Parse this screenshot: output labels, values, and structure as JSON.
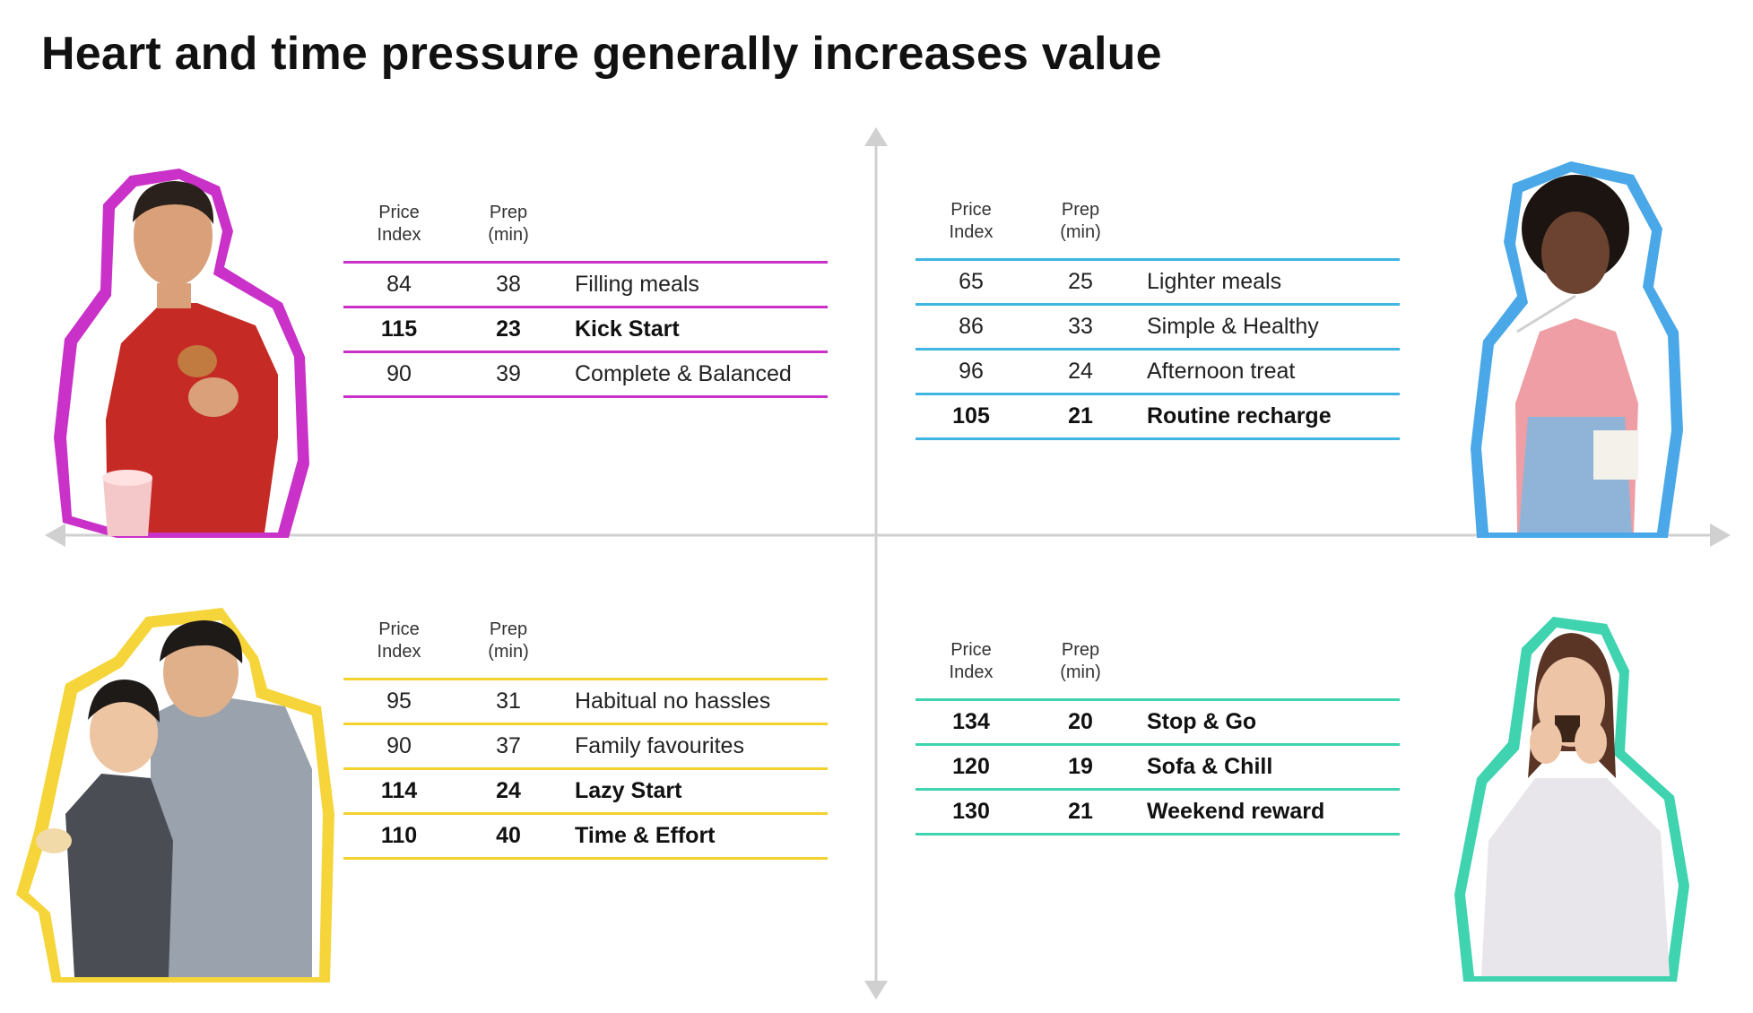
{
  "title": "Heart and time pressure generally increases value",
  "colors": {
    "axis": "#d0d0d0",
    "top_left": "#c931c8",
    "top_right": "#3fb6e2",
    "bottom_left": "#f4d22e",
    "bottom_right": "#3fd3b0"
  },
  "quadrants": {
    "top_left": {
      "header": {
        "col1_line1": "Price",
        "col1_line2": "Index",
        "col2_line1": "Prep",
        "col2_line2": "(min)"
      },
      "rows": [
        {
          "price": "84",
          "prep": "38",
          "label": "Filling meals",
          "bold": false
        },
        {
          "price": "115",
          "prep": "23",
          "label": "Kick Start",
          "bold": true
        },
        {
          "price": "90",
          "prep": "39",
          "label": "Complete & Balanced",
          "bold": false
        }
      ]
    },
    "top_right": {
      "header": {
        "col1_line1": "Price",
        "col1_line2": "Index",
        "col2_line1": "Prep",
        "col2_line2": "(min)"
      },
      "rows": [
        {
          "price": "65",
          "prep": "25",
          "label": "Lighter meals",
          "bold": false
        },
        {
          "price": "86",
          "prep": "33",
          "label": "Simple & Healthy",
          "bold": false
        },
        {
          "price": "96",
          "prep": "24",
          "label": "Afternoon treat",
          "bold": false
        },
        {
          "price": "105",
          "prep": "21",
          "label": "Routine recharge",
          "bold": true
        }
      ]
    },
    "bottom_left": {
      "header": {
        "col1_line1": "Price",
        "col1_line2": "Index",
        "col2_line1": "Prep",
        "col2_line2": "(min)"
      },
      "rows": [
        {
          "price": "95",
          "prep": "31",
          "label": "Habitual no hassles",
          "bold": false
        },
        {
          "price": "90",
          "prep": "37",
          "label": "Family favourites",
          "bold": false
        },
        {
          "price": "114",
          "prep": "24",
          "label": "Lazy Start",
          "bold": true
        },
        {
          "price": "110",
          "prep": "40",
          "label": "Time & Effort",
          "bold": true
        }
      ]
    },
    "bottom_right": {
      "header": {
        "col1_line1": "Price",
        "col1_line2": "Index",
        "col2_line1": "Prep",
        "col2_line2": "(min)"
      },
      "rows": [
        {
          "price": "134",
          "prep": "20",
          "label": "Stop & Go",
          "bold": true
        },
        {
          "price": "120",
          "prep": "19",
          "label": "Sofa & Chill",
          "bold": true
        },
        {
          "price": "130",
          "prep": "21",
          "label": "Weekend reward",
          "bold": true
        }
      ]
    }
  }
}
